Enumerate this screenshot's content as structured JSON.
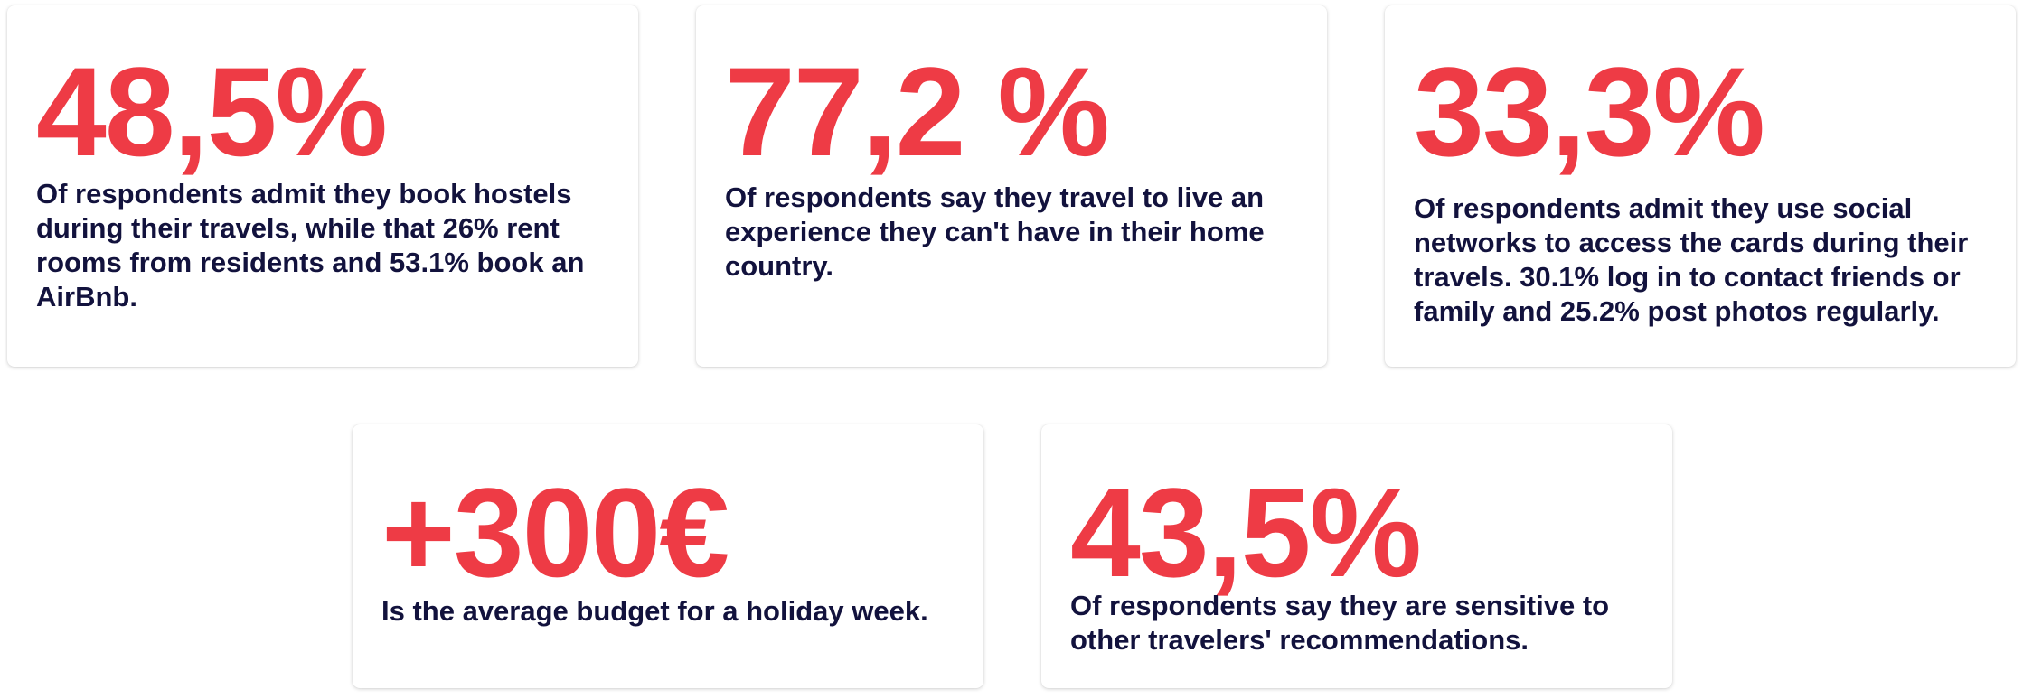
{
  "colors": {
    "accent": "#ee3b45",
    "text": "#12123d",
    "card_bg": "#ffffff"
  },
  "cards": [
    {
      "value": "48,5%",
      "text": "Of respondents admit they book hostels\nduring their travels, while that 26% rent\nrooms from residents and 53.1% book an\nAirBnb."
    },
    {
      "value": "77,2 %",
      "text": "Of respondents say they travel to live an\nexperience they can't have in their home\ncountry."
    },
    {
      "value": "33,3%",
      "text": "Of respondents admit they use social\nnetworks to access the cards during their\ntravels. 30.1% log in to contact friends or\nfamily and 25.2% post photos regularly."
    },
    {
      "value": "+300€",
      "text": "Is the average budget for a holiday week."
    },
    {
      "value": "43,5%",
      "text": "Of respondents say they are sensitive to\nother travelers' recommendations."
    }
  ]
}
